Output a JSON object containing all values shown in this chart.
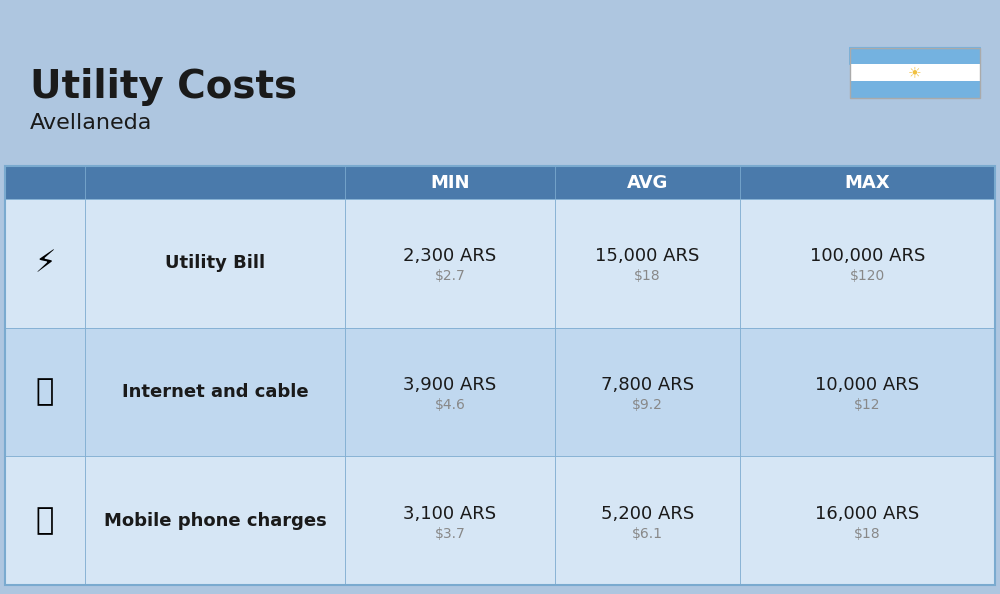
{
  "title": "Utility Costs",
  "subtitle": "Avellaneda",
  "background_color": "#aec6e0",
  "header_color": "#4a7aab",
  "header_text_color": "#ffffff",
  "row_color_light": "#d6e6f5",
  "row_color_dark": "#c0d8ef",
  "icon_col_color": "#b8d0e8",
  "border_color": "#7aaacf",
  "text_color": "#1a1a1a",
  "usd_color": "#888888",
  "headers": [
    "MIN",
    "AVG",
    "MAX"
  ],
  "rows": [
    {
      "label": "Utility Bill",
      "min_ars": "2,300 ARS",
      "min_usd": "$2.7",
      "avg_ars": "15,000 ARS",
      "avg_usd": "$18",
      "max_ars": "100,000 ARS",
      "max_usd": "$120",
      "icon": "utility"
    },
    {
      "label": "Internet and cable",
      "min_ars": "3,900 ARS",
      "min_usd": "$4.6",
      "avg_ars": "7,800 ARS",
      "avg_usd": "$9.2",
      "max_ars": "10,000 ARS",
      "max_usd": "$12",
      "icon": "internet"
    },
    {
      "label": "Mobile phone charges",
      "min_ars": "3,100 ARS",
      "min_usd": "$3.7",
      "avg_ars": "5,200 ARS",
      "avg_usd": "$6.1",
      "max_ars": "16,000 ARS",
      "max_usd": "$18",
      "icon": "mobile"
    }
  ],
  "flag_colors": [
    "#74b2e0",
    "#ffffff",
    "#74b2e0"
  ],
  "title_fontsize": 28,
  "subtitle_fontsize": 16,
  "header_fontsize": 13,
  "label_fontsize": 13,
  "value_fontsize": 13,
  "usd_fontsize": 10
}
